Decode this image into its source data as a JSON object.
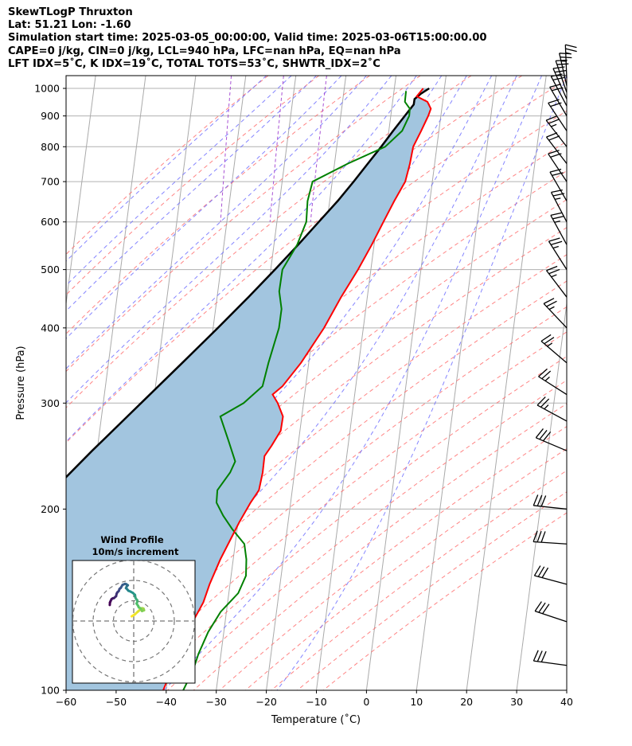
{
  "header": {
    "line1": "SkewTLogP Thruxton",
    "line2": "Lat: 51.21   Lon: -1.60",
    "line3": "Simulation start time: 2025-03-05_00:00:00, Valid time: 2025-03-06T15:00:00.00",
    "line4": "CAPE=0 j/kg, CIN=0 j/kg, LCL=940 hPa, LFC=nan hPa, EQ=nan hPa",
    "line5": "LFT IDX=5˚C, K IDX=19˚C, TOTAL TOTS=53˚C, SHWTR_IDX=2˚C"
  },
  "chart_data": {
    "type": "skewt",
    "xlabel": "Temperature (˚C)",
    "ylabel": "Pressure (hPa)",
    "xlim": [
      -60,
      40
    ],
    "ylim": [
      1050,
      100
    ],
    "x_ticks": [
      "−60",
      "−50",
      "−40",
      "−30",
      "−20",
      "−10",
      "0",
      "10",
      "20",
      "30",
      "40"
    ],
    "y_ticks": [
      "100",
      "200",
      "300",
      "400",
      "500",
      "600",
      "700",
      "800",
      "900",
      "1000"
    ],
    "grid": true,
    "colors": {
      "temperature": "#ff0000",
      "dewpoint": "#008000",
      "parcel": "#000000",
      "cape_fill": "#a2c5df",
      "dry_adiabats": "#ff6666",
      "moist_adiabats": "#6666ff",
      "mixing_ratio": "#9933cc",
      "isotherms": "#aaaaaa"
    },
    "temperature_profile": [
      [
        1000,
        11.0
      ],
      [
        970,
        9.5
      ],
      [
        950,
        11.5
      ],
      [
        925,
        12.0
      ],
      [
        900,
        11.3
      ],
      [
        850,
        9.5
      ],
      [
        800,
        7.5
      ],
      [
        750,
        6.4
      ],
      [
        700,
        5.0
      ],
      [
        650,
        2.3
      ],
      [
        600,
        -0.4
      ],
      [
        550,
        -3.3
      ],
      [
        500,
        -6.7
      ],
      [
        450,
        -10.8
      ],
      [
        400,
        -15.0
      ],
      [
        350,
        -20.5
      ],
      [
        320,
        -24.8
      ],
      [
        310,
        -27.0
      ],
      [
        300,
        -26.2
      ],
      [
        285,
        -25.5
      ],
      [
        270,
        -26.3
      ],
      [
        255,
        -28.5
      ],
      [
        245,
        -30.2
      ],
      [
        230,
        -31.0
      ],
      [
        215,
        -32.2
      ],
      [
        205,
        -34.2
      ],
      [
        190,
        -37.0
      ],
      [
        180,
        -38.8
      ],
      [
        165,
        -41.7
      ],
      [
        150,
        -44.5
      ],
      [
        140,
        -46.2
      ],
      [
        125,
        -50.2
      ],
      [
        115,
        -52.5
      ],
      [
        100,
        -56.5
      ]
    ],
    "dewpoint_profile": [
      [
        990,
        7.5
      ],
      [
        950,
        7.0
      ],
      [
        925,
        7.8
      ],
      [
        900,
        7.5
      ],
      [
        850,
        5.7
      ],
      [
        800,
        1.9
      ],
      [
        750,
        -6.0
      ],
      [
        700,
        -13.5
      ],
      [
        650,
        -15.0
      ],
      [
        600,
        -15.8
      ],
      [
        550,
        -18.2
      ],
      [
        500,
        -21.8
      ],
      [
        460,
        -23.0
      ],
      [
        430,
        -23.0
      ],
      [
        400,
        -24.0
      ],
      [
        350,
        -27.0
      ],
      [
        320,
        -28.8
      ],
      [
        300,
        -33.0
      ],
      [
        285,
        -38.0
      ],
      [
        260,
        -37.0
      ],
      [
        240,
        -36.2
      ],
      [
        230,
        -37.5
      ],
      [
        215,
        -40.5
      ],
      [
        205,
        -41.0
      ],
      [
        195,
        -40.0
      ],
      [
        185,
        -38.5
      ],
      [
        175,
        -36.5
      ],
      [
        165,
        -36.5
      ],
      [
        155,
        -37.0
      ],
      [
        145,
        -39.0
      ],
      [
        135,
        -43.0
      ],
      [
        125,
        -46.0
      ],
      [
        115,
        -48.5
      ],
      [
        108,
        -50.0
      ],
      [
        100,
        -52.5
      ]
    ],
    "parcel_profile": [
      [
        1000,
        12.2
      ],
      [
        980,
        10.4
      ],
      [
        960,
        9.0
      ],
      [
        940,
        8.7
      ],
      [
        900,
        6.6
      ],
      [
        850,
        3.9
      ],
      [
        800,
        1.1
      ],
      [
        750,
        -2.0
      ],
      [
        700,
        -5.3
      ],
      [
        650,
        -9.0
      ],
      [
        600,
        -13.3
      ],
      [
        550,
        -18.0
      ],
      [
        500,
        -23.3
      ],
      [
        450,
        -29.3
      ],
      [
        400,
        -36.2
      ],
      [
        350,
        -44.2
      ],
      [
        300,
        -53.5
      ],
      [
        250,
        -64.5
      ],
      [
        200,
        -77.5
      ],
      [
        150,
        -93.5
      ],
      [
        100,
        -114.0
      ]
    ],
    "wind_barbs": [
      {
        "p": 1040,
        "u": -1,
        "v": 25
      },
      {
        "p": 1010,
        "u": -5,
        "v": 22
      },
      {
        "p": 985,
        "u": -7,
        "v": 20
      },
      {
        "p": 960,
        "u": -8,
        "v": 18
      },
      {
        "p": 935,
        "u": -9,
        "v": 17
      },
      {
        "p": 900,
        "u": -10,
        "v": 17
      },
      {
        "p": 850,
        "u": -12,
        "v": 18
      },
      {
        "p": 800,
        "u": -14,
        "v": 18
      },
      {
        "p": 750,
        "u": -13,
        "v": 17
      },
      {
        "p": 700,
        "u": -12,
        "v": 18
      },
      {
        "p": 650,
        "u": -11,
        "v": 19
      },
      {
        "p": 600,
        "u": -11,
        "v": 21
      },
      {
        "p": 550,
        "u": -12,
        "v": 22
      },
      {
        "p": 500,
        "u": -14,
        "v": 22
      },
      {
        "p": 450,
        "u": -16,
        "v": 21
      },
      {
        "p": 400,
        "u": -18,
        "v": 19
      },
      {
        "p": 350,
        "u": -20,
        "v": 17
      },
      {
        "p": 310,
        "u": -22,
        "v": 14
      },
      {
        "p": 280,
        "u": -24,
        "v": 13
      },
      {
        "p": 250,
        "u": -26,
        "v": 11
      },
      {
        "p": 200,
        "u": -28,
        "v": 3
      },
      {
        "p": 175,
        "u": -30,
        "v": 2
      },
      {
        "p": 150,
        "u": -30,
        "v": 8
      },
      {
        "p": 130,
        "u": -30,
        "v": 10
      },
      {
        "p": 110,
        "u": -30,
        "v": 4
      }
    ],
    "hodograph": {
      "title": "Wind Profile",
      "subtitle": "10m/s increment",
      "ring_step": 10,
      "rings": [
        10,
        20,
        30
      ],
      "points": [
        [
          -1,
          2.3
        ],
        [
          0.5,
          3.2
        ],
        [
          2,
          4.6
        ],
        [
          3,
          5.4
        ],
        [
          3.3,
          6
        ],
        [
          4.2,
          6.3
        ],
        [
          4.8,
          6.1
        ],
        [
          5.1,
          5.3
        ],
        [
          4.1,
          4.9
        ],
        [
          3.3,
          6.3
        ],
        [
          2.5,
          6.7
        ],
        [
          2.2,
          7.4
        ],
        [
          1.4,
          8.6
        ],
        [
          1.8,
          9.5
        ],
        [
          1.7,
          10.3
        ],
        [
          1.2,
          10.8
        ],
        [
          0.8,
          11.6
        ],
        [
          0.7,
          12.3
        ],
        [
          0.6,
          12.9
        ],
        [
          -0.5,
          13.9
        ],
        [
          -1.6,
          14.5
        ],
        [
          -2.6,
          14.9
        ],
        [
          -3.2,
          15.6
        ],
        [
          -3.8,
          16.2
        ],
        [
          -3.4,
          17.1
        ],
        [
          -2.9,
          17.6
        ],
        [
          -3.6,
          18.1
        ],
        [
          -4.3,
          18.3
        ],
        [
          -5.5,
          17.8
        ],
        [
          -6.4,
          16.3
        ],
        [
          -7,
          15.8
        ],
        [
          -7.4,
          14.7
        ],
        [
          -8,
          14.2
        ],
        [
          -8.4,
          13.5
        ],
        [
          -8.7,
          12.2
        ],
        [
          -9.7,
          11.3
        ],
        [
          -10.3,
          11.2
        ],
        [
          -10.9,
          10.8
        ],
        [
          -11.4,
          9.8
        ],
        [
          -11.7,
          9.1
        ],
        [
          -11.8,
          7.9
        ]
      ],
      "colormap": "viridis"
    }
  }
}
